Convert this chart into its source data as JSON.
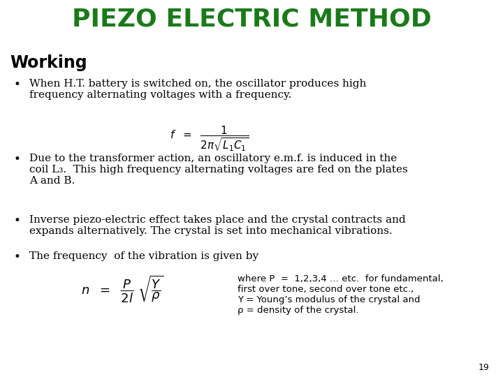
{
  "title": "PIEZO ELECTRIC METHOD",
  "title_color": "#1a7a1a",
  "title_fontsize": 26,
  "working_label": "Working",
  "working_fontsize": 17,
  "background_color": "#ffffff",
  "text_color": "#000000",
  "bullet1": "When H.T. battery is switched on, the oscillator produces high\nfrequency alternating voltages with a frequency.",
  "bullet2": "Due to the transformer action, an oscillatory e.m.f. is induced in the\ncoil L₃.  This high frequency alternating voltages are fed on the plates\nA and B.",
  "bullet3": "Inverse piezo-electric effect takes place and the crystal contracts and\nexpands alternatively. The crystal is set into mechanical vibrations.",
  "bullet4": "The frequency  of the vibration is given by",
  "formula1": "$f \\ \\ = \\ \\ \\dfrac{1}{2\\pi\\sqrt{L_1 C_1}}$",
  "formula2": "$n \\ \\ = \\ \\ \\dfrac{P}{2l} \\ \\sqrt{\\dfrac{Y}{\\rho}}$",
  "where_text": "where P  =  1,2,3,4 … etc.  for fundamental,\nfirst over tone, second over tone etc.,\nY = Young’s modulus of the crystal and\nρ = density of the crystal.",
  "page_number": "19",
  "bullet_fs": 11,
  "formula_fs": 11
}
